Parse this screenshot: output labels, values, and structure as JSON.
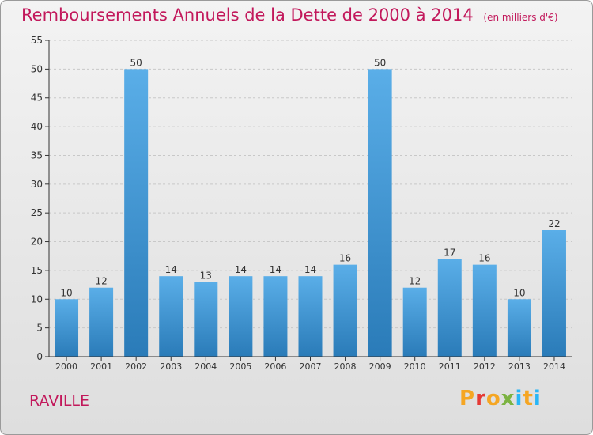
{
  "header": {
    "title": "Remboursements Annuels de la Dette de 2000 à 2014",
    "subtitle": "(en milliers d'€)"
  },
  "footer": {
    "commune": "RAVILLE",
    "logo_letters": [
      "P",
      "r",
      "o",
      "x",
      "i",
      "t",
      "i"
    ],
    "logo_colors": [
      "#f5a623",
      "#e53935",
      "#f5a623",
      "#7cb342",
      "#29b6f6",
      "#f5a623",
      "#29b6f6"
    ]
  },
  "colors": {
    "bar_top": "#5aaee8",
    "bar_bottom": "#2a7bb8",
    "title": "#c2185b",
    "axis": "#333333",
    "grid": "#c8c8c8"
  },
  "chart_data": {
    "type": "bar",
    "categories": [
      "2000",
      "2001",
      "2002",
      "2003",
      "2004",
      "2005",
      "2006",
      "2007",
      "2008",
      "2009",
      "2010",
      "2011",
      "2012",
      "2013",
      "2014"
    ],
    "values": [
      10,
      12,
      50,
      14,
      13,
      14,
      14,
      14,
      16,
      50,
      12,
      17,
      16,
      10,
      22
    ],
    "ylim": [
      0,
      55
    ],
    "yticks": [
      0,
      5,
      10,
      15,
      20,
      25,
      30,
      35,
      40,
      45,
      50,
      55
    ],
    "grid": true
  }
}
